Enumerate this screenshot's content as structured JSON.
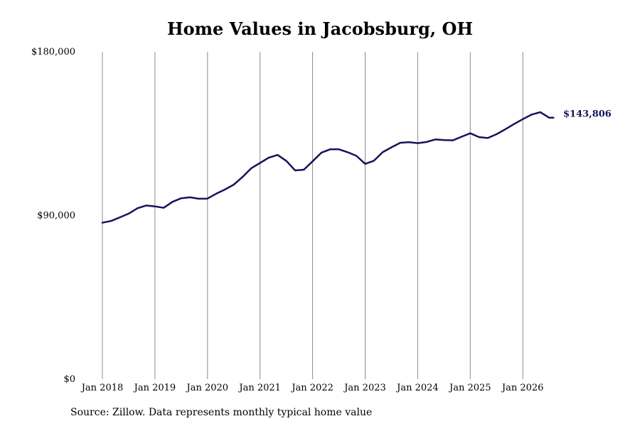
{
  "source_note": "Source: Zillow. Data represents monthly typical home value",
  "colors": {
    "line": "#14145a",
    "grid": "#8c8c8c",
    "end_label": "#14145a"
  },
  "chart_data": {
    "type": "line",
    "title": "Home Values in Jacobsburg, OH",
    "xlabel": "",
    "ylabel": "",
    "grid": "vertical",
    "legend": "none",
    "ylim": [
      0,
      180000
    ],
    "y_ticks": [
      0,
      90000,
      180000
    ],
    "y_tick_labels": [
      "$0",
      "$90,000",
      "$180,000"
    ],
    "x_ticks": [
      "2018-01",
      "2019-01",
      "2020-01",
      "2021-01",
      "2022-01",
      "2023-01",
      "2024-01",
      "2025-01",
      "2026-01"
    ],
    "x_tick_labels": [
      "Jan 2018",
      "Jan 2019",
      "Jan 2020",
      "Jan 2021",
      "Jan 2022",
      "Jan 2023",
      "Jan 2024",
      "Jan 2025",
      "Jan 2026"
    ],
    "end_label": "$143,806",
    "series": [
      {
        "x": [
          "2018-01",
          "2018-03",
          "2018-05",
          "2018-07",
          "2018-09",
          "2018-11",
          "2019-01",
          "2019-03",
          "2019-05",
          "2019-07",
          "2019-09",
          "2019-11",
          "2020-01",
          "2020-03",
          "2020-05",
          "2020-07",
          "2020-09",
          "2020-11",
          "2021-01",
          "2021-03",
          "2021-05",
          "2021-07",
          "2021-09",
          "2021-11",
          "2022-01",
          "2022-03",
          "2022-05",
          "2022-07",
          "2022-09",
          "2022-11",
          "2023-01",
          "2023-03",
          "2023-05",
          "2023-07",
          "2023-09",
          "2023-11",
          "2024-01",
          "2024-03",
          "2024-05",
          "2024-07",
          "2024-09",
          "2024-11",
          "2025-01",
          "2025-03",
          "2025-05",
          "2025-07",
          "2025-09",
          "2025-11",
          "2026-01",
          "2026-03",
          "2026-05",
          "2026-07",
          "2026-08"
        ],
        "values": [
          86000,
          87000,
          89000,
          91000,
          94000,
          95500,
          95000,
          94200,
          97500,
          99500,
          100000,
          99200,
          99300,
          102000,
          104300,
          107000,
          111200,
          116000,
          118900,
          121800,
          123300,
          120000,
          114800,
          115200,
          119800,
          124500,
          126400,
          126400,
          124800,
          122800,
          118400,
          120100,
          124800,
          127500,
          130000,
          130300,
          129800,
          130400,
          131800,
          131500,
          131300,
          133300,
          135200,
          133100,
          132600,
          134700,
          137400,
          140300,
          143000,
          145500,
          146800,
          143806,
          143806
        ]
      }
    ]
  }
}
